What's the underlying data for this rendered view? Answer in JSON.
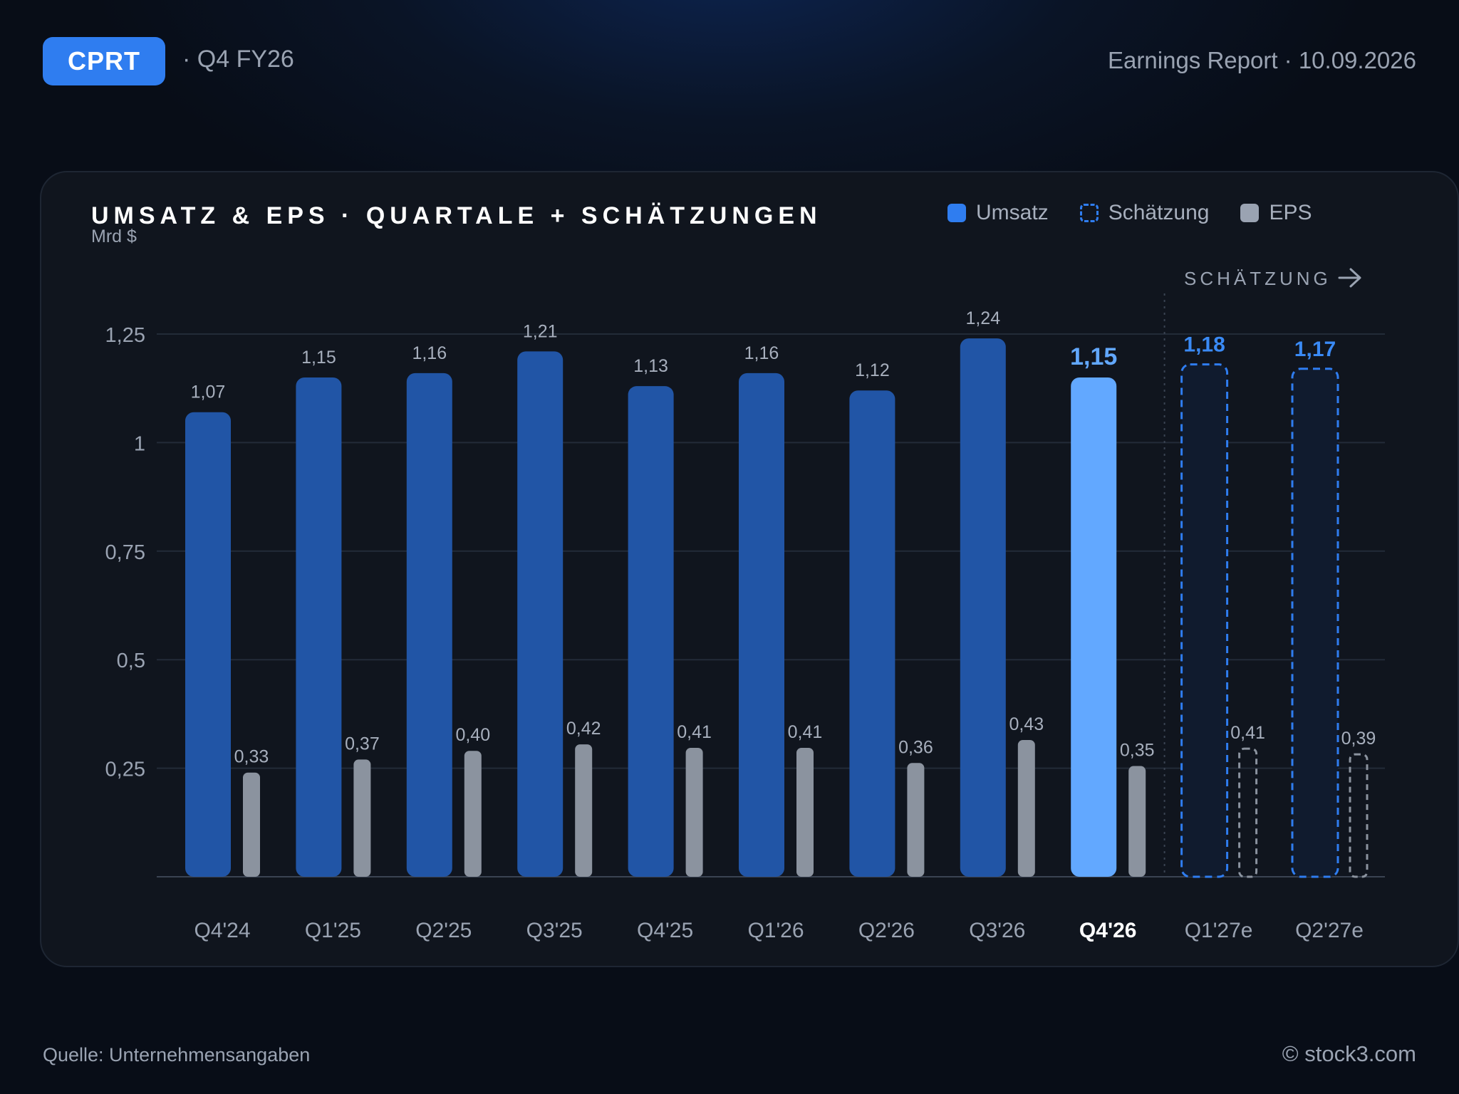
{
  "header": {
    "ticker": "CPRT",
    "period": "· Q4 FY26",
    "report": "Earnings Report · 10.09.2026"
  },
  "legend": {
    "revenue": "Umsatz",
    "estimate": "Schätzung",
    "eps": "EPS"
  },
  "footer": {
    "source": "Quelle: Unternehmensangaben",
    "copyright": "© stock3.com"
  },
  "colors": {
    "revenue": "#2155a6",
    "revenue_highlight": "#62a8ff",
    "estimate_outline": "#2f7df0",
    "eps": "#8b939f",
    "estimate_label": "#3a8af5"
  },
  "chart_data": {
    "type": "bar",
    "title": "UMSATZ & EPS · QUARTALE + SCHÄTZUNGEN",
    "subtitle": "Mrd $",
    "estimate_marker": "SCHÄTZUNG",
    "categories": [
      "Q4'24",
      "Q1'25",
      "Q2'25",
      "Q3'25",
      "Q4'25",
      "Q1'26",
      "Q2'26",
      "Q3'26",
      "Q4'26",
      "Q1'27e",
      "Q2'27e"
    ],
    "estimate_flags": [
      false,
      false,
      false,
      false,
      false,
      false,
      false,
      false,
      false,
      true,
      true
    ],
    "highlight_index": 8,
    "series": [
      {
        "name": "Umsatz",
        "values": [
          1.07,
          1.15,
          1.16,
          1.21,
          1.13,
          1.16,
          1.12,
          1.24,
          1.15,
          1.18,
          1.17
        ],
        "labels": [
          "1,07",
          "1,15",
          "1,16",
          "1,21",
          "1,13",
          "1,16",
          "1,12",
          "1,24",
          "1,15",
          "1,18",
          "1,17"
        ]
      },
      {
        "name": "EPS",
        "values": [
          0.24,
          0.27,
          0.29,
          0.305,
          0.297,
          0.297,
          0.262,
          0.315,
          0.255,
          0.295,
          0.282
        ],
        "labels": [
          "0,33",
          "0,37",
          "0,40",
          "0,42",
          "0,41",
          "0,41",
          "0,36",
          "0,43",
          "0,35",
          "0,41",
          "0,39"
        ]
      }
    ],
    "yticks": [
      0.25,
      0.5,
      0.75,
      1,
      1.25
    ],
    "ytick_labels": [
      "0,25",
      "0,5",
      "0,75",
      "1",
      "1,25"
    ],
    "ylim": [
      0,
      1.25
    ],
    "grid": true,
    "legend_position": "top-right"
  }
}
